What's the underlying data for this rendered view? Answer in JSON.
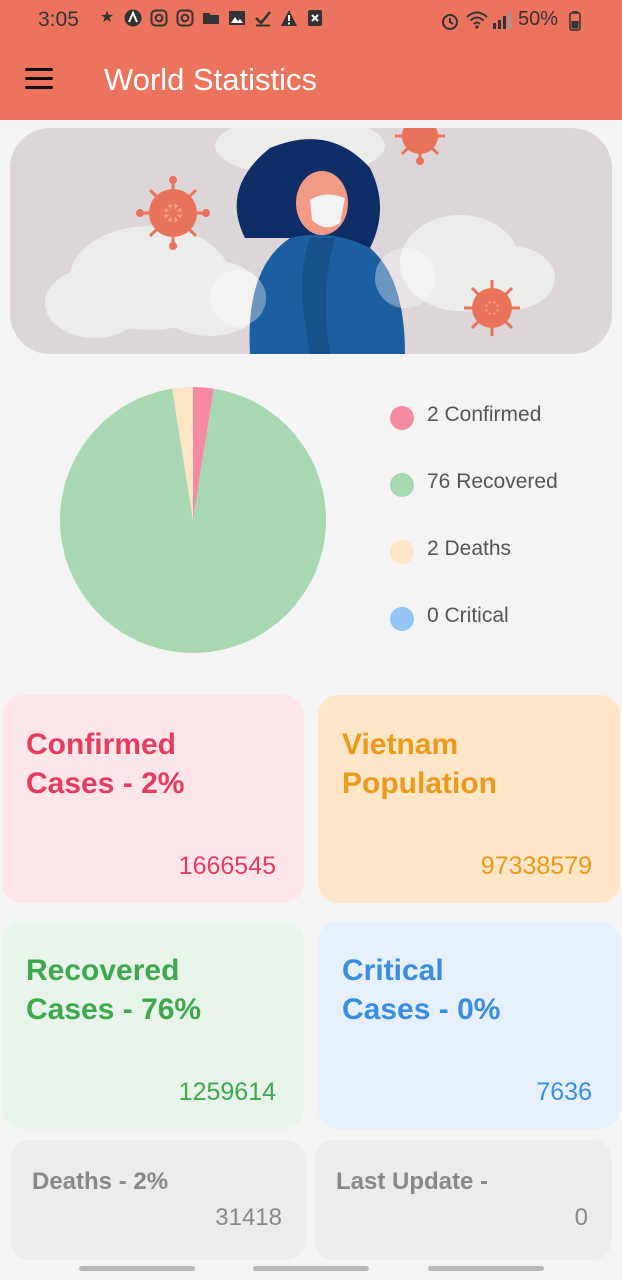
{
  "status_bar": {
    "time": "3:05",
    "battery": "50%",
    "icons": [
      "emergency-icon",
      "app-a-icon",
      "instagram-icon",
      "instagram-icon",
      "folder-icon",
      "image-icon",
      "check-icon",
      "warning-icon",
      "close-box-icon",
      "alarm-icon",
      "wifi-icon",
      "signal-icon",
      "battery-icon"
    ]
  },
  "app_bar": {
    "title": "World Statistics"
  },
  "chart_data": {
    "type": "pie",
    "slices": [
      {
        "name": "Confirmed",
        "value": 2,
        "color": "#f48ba2"
      },
      {
        "name": "Recovered",
        "value": 76,
        "color": "#a8d8b1"
      },
      {
        "name": "Deaths",
        "value": 2,
        "color": "#fbe5c4"
      },
      {
        "name": "Critical",
        "value": 0,
        "color": "#94c4f6"
      }
    ],
    "legend": [
      {
        "label": "2 Confirmed",
        "color": "#f48ba2"
      },
      {
        "label": "76 Recovered",
        "color": "#a8d8b1"
      },
      {
        "label": "2 Deaths",
        "color": "#fbe5c4"
      },
      {
        "label": "0 Critical",
        "color": "#94c4f6"
      }
    ],
    "legend_position": "right"
  },
  "cards": {
    "confirmed": {
      "title_line1": "Confirmed",
      "title_line2": "Cases - 2%",
      "value": "1666545",
      "color": "#e63d5e"
    },
    "population": {
      "title_line1": "Vietnam",
      "title_line2": "Population",
      "value": "97338579",
      "color": "#eb9a1c"
    },
    "recovered": {
      "title_line1": "Recovered",
      "title_line2": "Cases - 76%",
      "value": "1259614",
      "color": "#3fa84d"
    },
    "critical": {
      "title_line1": "Critical",
      "title_line2": "Cases - 0%",
      "value": "7636",
      "color": "#3a8de2"
    },
    "deaths": {
      "title": "Deaths - 2%",
      "value": "31418"
    },
    "last_update": {
      "title": "Last Update -",
      "value": "0"
    }
  }
}
